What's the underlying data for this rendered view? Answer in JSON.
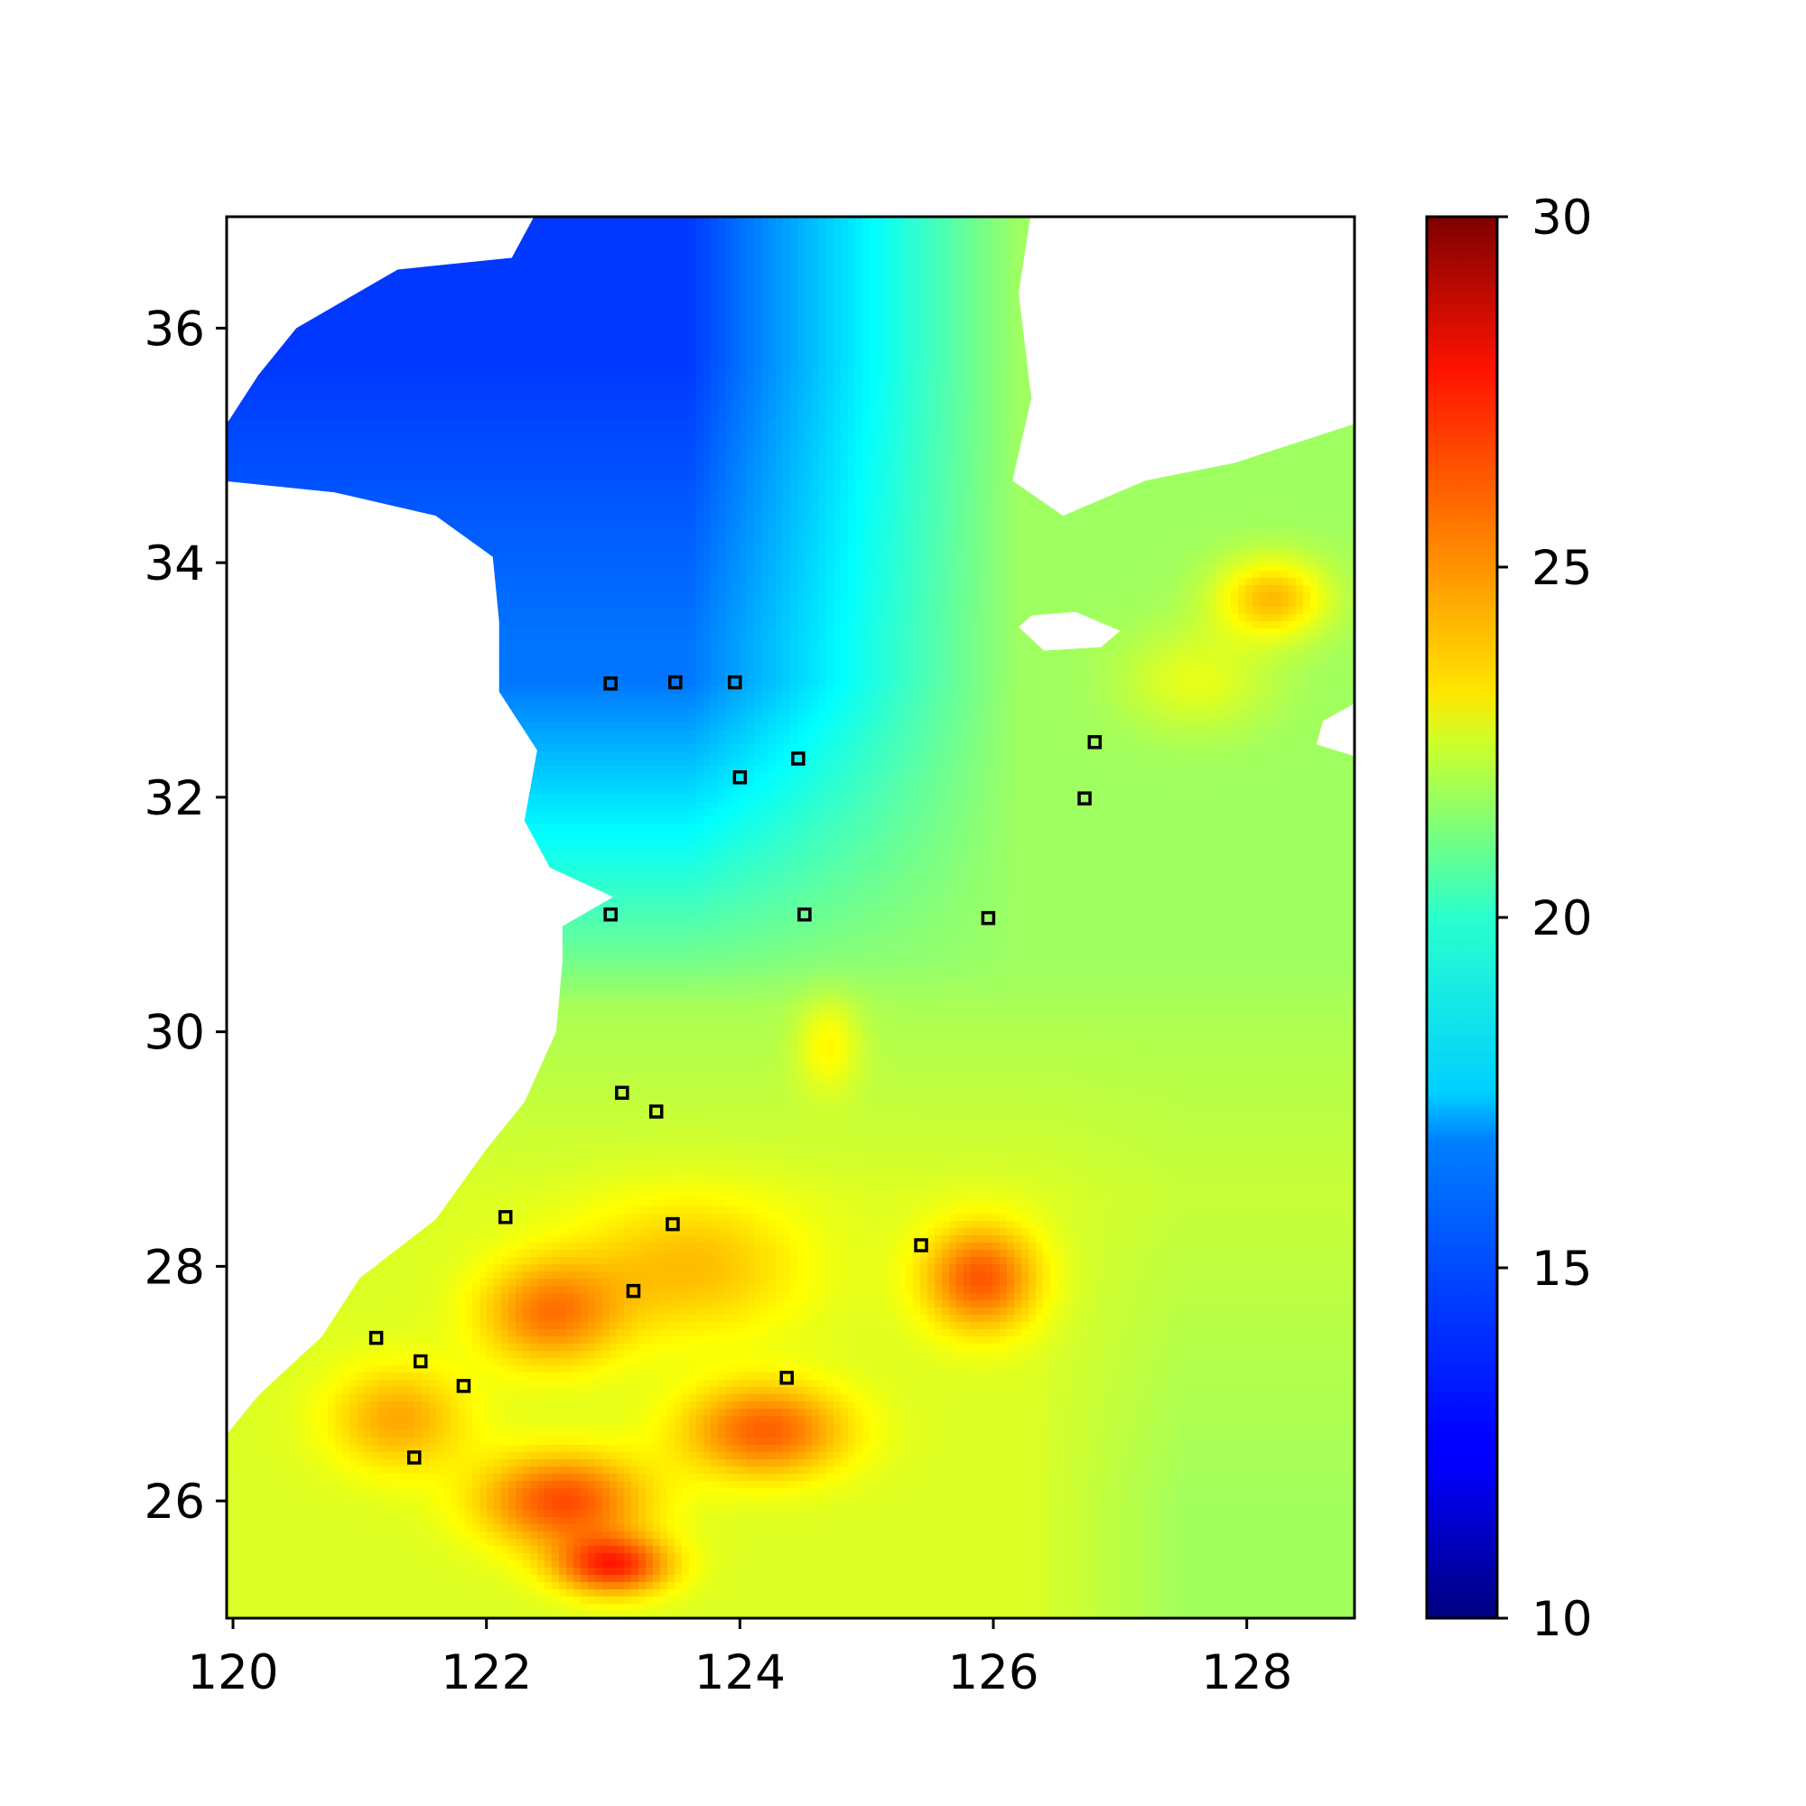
{
  "chart_data": {
    "type": "heatmap",
    "title": "",
    "xlabel": "",
    "ylabel": "",
    "xlim": [
      119.95,
      128.85
    ],
    "ylim": [
      25.0,
      36.95
    ],
    "x_ticks": [
      "120",
      "122",
      "124",
      "126",
      "128"
    ],
    "y_ticks": [
      "26",
      "28",
      "30",
      "32",
      "34",
      "36"
    ],
    "colorbar": {
      "colormap": "jet",
      "range": [
        10,
        30
      ],
      "ticks": [
        "10",
        "15",
        "20",
        "25",
        "30"
      ]
    },
    "field_description_values": {
      "yellow_sea_north_min": 14.5,
      "south_warm_max": 26.5,
      "open_ocean_background": 20.5
    },
    "stations": [
      {
        "lon": 122.98,
        "lat": 32.97
      },
      {
        "lon": 123.49,
        "lat": 32.98
      },
      {
        "lon": 123.96,
        "lat": 32.98
      },
      {
        "lon": 124.0,
        "lat": 32.17
      },
      {
        "lon": 124.46,
        "lat": 32.33
      },
      {
        "lon": 126.8,
        "lat": 32.47
      },
      {
        "lon": 126.72,
        "lat": 31.99
      },
      {
        "lon": 122.98,
        "lat": 31.0
      },
      {
        "lon": 124.51,
        "lat": 31.0
      },
      {
        "lon": 125.96,
        "lat": 30.97
      },
      {
        "lon": 123.07,
        "lat": 29.48
      },
      {
        "lon": 123.34,
        "lat": 29.32
      },
      {
        "lon": 122.15,
        "lat": 28.42
      },
      {
        "lon": 123.47,
        "lat": 28.36
      },
      {
        "lon": 125.43,
        "lat": 28.18
      },
      {
        "lon": 123.16,
        "lat": 27.79
      },
      {
        "lon": 121.13,
        "lat": 27.39
      },
      {
        "lon": 121.48,
        "lat": 27.19
      },
      {
        "lon": 121.82,
        "lat": 26.98
      },
      {
        "lon": 124.37,
        "lat": 27.05
      },
      {
        "lon": 121.43,
        "lat": 26.37
      }
    ]
  }
}
